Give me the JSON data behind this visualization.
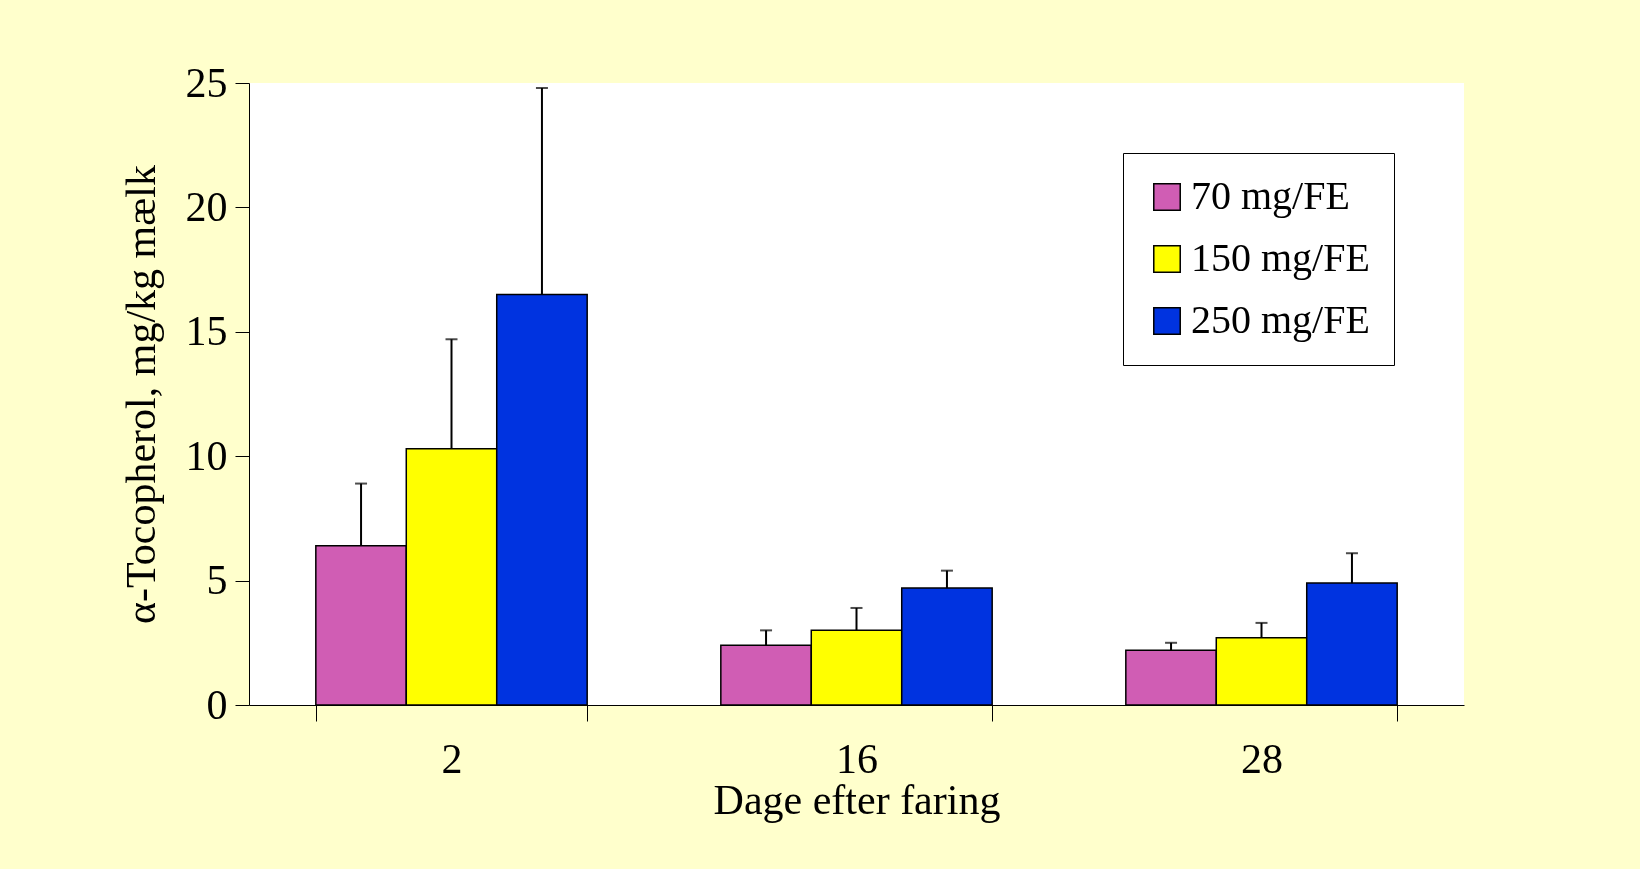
{
  "chart_data": {
    "type": "bar",
    "xlabel": "Dage efter faring",
    "ylabel": "α-Tocopherol, mg/kg mælk",
    "categories": [
      "2",
      "16",
      "28"
    ],
    "series": [
      {
        "name": "70 mg/FE",
        "color": "#d05db4",
        "values": [
          6.4,
          2.4,
          2.2
        ],
        "errors": [
          [
            6.4,
            8.9
          ],
          [
            2.4,
            3.0
          ],
          [
            2.2,
            2.5
          ]
        ]
      },
      {
        "name": "150 mg/FE",
        "color": "#ffff00",
        "values": [
          10.3,
          3.0,
          2.7
        ],
        "errors": [
          [
            10.3,
            14.7
          ],
          [
            3.0,
            3.9
          ],
          [
            2.7,
            3.3
          ]
        ]
      },
      {
        "name": "250 mg/FE",
        "color": "#0033e0",
        "values": [
          16.5,
          4.7,
          4.9
        ],
        "errors": [
          [
            16.5,
            24.8
          ],
          [
            4.7,
            5.4
          ],
          [
            4.9,
            6.1
          ]
        ]
      }
    ],
    "ylim": [
      0,
      25
    ],
    "yticks": [
      0,
      5,
      10,
      15,
      20,
      25
    ],
    "grid": false,
    "legend": "top right"
  }
}
